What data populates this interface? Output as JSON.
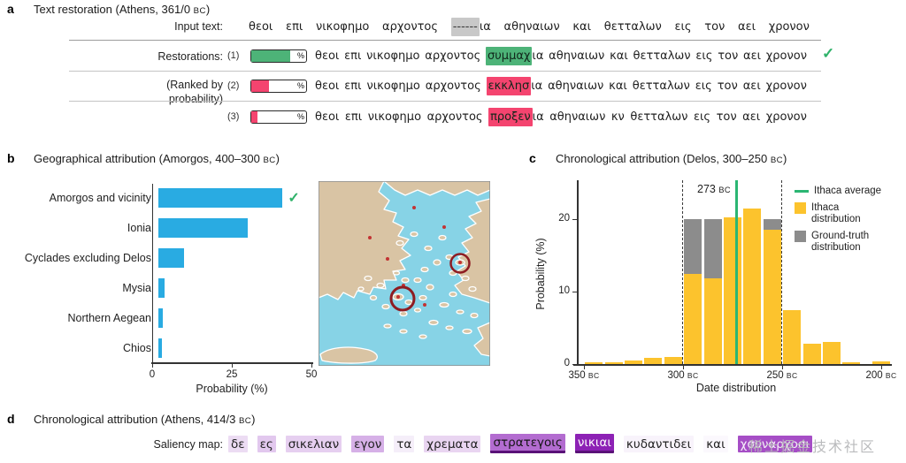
{
  "panel_a": {
    "label": "a",
    "title": "Text restoration (Athens, 361/0 BC)",
    "input_label": "Input text:",
    "restorations_label": "Restorations:",
    "ranked_by": [
      "(Ranked by",
      "probability)"
    ],
    "percent_sign": "%",
    "check_mark": "✓",
    "colors": {
      "green": "#4db378",
      "red": "#f4446f",
      "mask": "#c8c8c8"
    },
    "input_row": {
      "words_before": [
        "θεοι",
        "επι",
        "νικοφημο",
        "αρχοντος"
      ],
      "mask": "------",
      "joined": "ια",
      "words_after": [
        "αθηναιων",
        "και",
        "θετταλων",
        "εις",
        "τον",
        "αει",
        "χρονον"
      ]
    },
    "restorations": [
      {
        "rank": "(1)",
        "bar_pct": 71,
        "bar_color": "#4db378",
        "highlight_color": "#4db378",
        "words_before": [
          "θεοι",
          "επι",
          "νικοφημο",
          "αρχοντος"
        ],
        "predicted": "συμμαχ",
        "joined": "ια",
        "words_after": [
          "αθηναιων",
          "και",
          "θετταλων",
          "εις",
          "τον",
          "αει",
          "χρονον"
        ],
        "correct": true
      },
      {
        "rank": "(2)",
        "bar_pct": 32,
        "bar_color": "#f4446f",
        "highlight_color": "#f4446f",
        "words_before": [
          "θεοι",
          "επι",
          "νικοφημο",
          "αρχοντος"
        ],
        "predicted": "εκκλησ",
        "joined": "ια",
        "words_after": [
          "αθηναιων",
          "και",
          "θετταλων",
          "εις",
          "τον",
          "αει",
          "χρονον"
        ],
        "correct": false
      },
      {
        "rank": "(3)",
        "bar_pct": 11,
        "bar_color": "#f4446f",
        "highlight_color": "#f4446f",
        "words_before": [
          "θεοι",
          "επι",
          "νικοφημο",
          "αρχοντος"
        ],
        "predicted": "προξεν",
        "joined": "ια",
        "words_after": [
          "αθηναιων",
          "κν",
          "θετταλων",
          "εις",
          "τον",
          "αει",
          "χρονον"
        ],
        "correct": false
      }
    ]
  },
  "panel_b": {
    "label": "b",
    "check_mark": "✓",
    "map": {
      "water": "#87d3e6",
      "land": "#d9c4a4",
      "coast": "#ffffff",
      "dot": "#c23333",
      "circle": "#8e1c22"
    }
  },
  "panel_c": {
    "label": "c"
  },
  "panel_d": {
    "label": "d",
    "title": "Chronological attribution (Athens, 414/3 BC)",
    "saliency_label": "Saliency map:",
    "words": [
      {
        "text": "δε",
        "bg": "#ecdcf3",
        "fg": "#222222",
        "underline": false
      },
      {
        "text": "ες",
        "bg": "#e2c8ee",
        "fg": "#222222",
        "underline": false
      },
      {
        "text": "σικελιαν",
        "bg": "#e6cff0",
        "fg": "#222222",
        "underline": false
      },
      {
        "text": "εγον",
        "bg": "#d6b0e7",
        "fg": "#222222",
        "underline": false
      },
      {
        "text": "τα",
        "bg": "#f5eef9",
        "fg": "#222222",
        "underline": false
      },
      {
        "text": "χρεματα",
        "bg": "#e9d5f1",
        "fg": "#222222",
        "underline": false
      },
      {
        "text": "στρατεγοις",
        "bg": "#b36cd0",
        "fg": "#141414",
        "underline": true
      },
      {
        "text": "νικιαι",
        "bg": "#8d22b5",
        "fg": "#ffffff",
        "underline": true
      },
      {
        "text": "κυδαντιδει",
        "bg": "#f8f3fb",
        "fg": "#222222",
        "underline": false
      },
      {
        "text": "και",
        "bg": "#fbf8fd",
        "fg": "#222222",
        "underline": false
      },
      {
        "text": "χσυναρχοσι",
        "bg": "#a64ec6",
        "fg": "#f6f0fa",
        "underline": false
      }
    ],
    "underline_color": "#5a1278"
  },
  "watermark": {
    "text": "稀土掘金技术社区"
  },
  "chart_data": [
    {
      "type": "bar",
      "orientation": "horizontal",
      "title": "Geographical attribution (Amorgos, 400–300 BC)",
      "categories": [
        "Amorgos and vicinity",
        "Ionia",
        "Cyclades excluding Delos",
        "Mysia",
        "Northern Aegean",
        "Chios"
      ],
      "values": [
        39,
        28,
        8,
        2,
        1.5,
        1.2
      ],
      "xlabel": "Probability (%)",
      "xlim": [
        0,
        50
      ],
      "xticks": [
        0,
        25,
        50
      ],
      "bar_color": "#29abe2",
      "correct_index": 0,
      "grid": false,
      "legend_position": "none"
    },
    {
      "type": "histogram",
      "title": "Chronological attribution (Delos, 300–250 BC)",
      "xlabel": "Date distribution",
      "ylabel": "Probability (%)",
      "ylim": [
        0,
        25
      ],
      "yticks": [
        0,
        10,
        20
      ],
      "xticks": [
        {
          "year": 350,
          "label": "350 BC"
        },
        {
          "year": 300,
          "label": "300 BC"
        },
        {
          "year": 250,
          "label": "250 BC"
        },
        {
          "year": 200,
          "label": "200 BC"
        }
      ],
      "bin_width": 10,
      "series": [
        {
          "name": "Ithaca distribution",
          "color": "#fcc32d",
          "bins": [
            {
              "start": 350,
              "value": 0.2
            },
            {
              "start": 340,
              "value": 0.25
            },
            {
              "start": 330,
              "value": 0.5
            },
            {
              "start": 320,
              "value": 0.8
            },
            {
              "start": 310,
              "value": 1.0
            },
            {
              "start": 300,
              "value": 12.5
            },
            {
              "start": 290,
              "value": 11.8
            },
            {
              "start": 280,
              "value": 20.3
            },
            {
              "start": 270,
              "value": 21.5
            },
            {
              "start": 260,
              "value": 18.5
            },
            {
              "start": 250,
              "value": 7.5
            },
            {
              "start": 240,
              "value": 2.8
            },
            {
              "start": 230,
              "value": 3.0
            },
            {
              "start": 220,
              "value": 0.25
            },
            {
              "start": 205,
              "value": 0.35
            }
          ]
        },
        {
          "name": "Ground-truth distribution",
          "color": "#8c8c8c",
          "bins": [
            {
              "start": 300,
              "value": 20
            },
            {
              "start": 290,
              "value": 20
            },
            {
              "start": 280,
              "value": 20
            },
            {
              "start": 270,
              "value": 20
            },
            {
              "start": 260,
              "value": 20
            }
          ]
        }
      ],
      "average_line": {
        "year": 273,
        "label": "273 BC",
        "color": "#2bb673",
        "name": "Ithaca average"
      },
      "dashed_lines": [
        300,
        250
      ],
      "legend": [
        "Ithaca average",
        "Ithaca distribution",
        "Ground-truth distribution"
      ],
      "legend_position": "upper right",
      "grid": false
    }
  ]
}
